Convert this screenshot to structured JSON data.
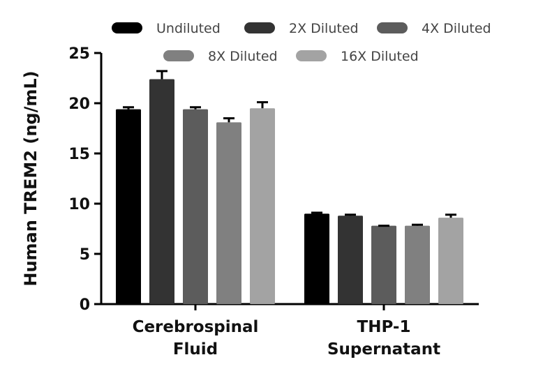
{
  "chart_data": {
    "type": "bar",
    "title": "",
    "xlabel": "",
    "ylabel": "Human TREM2 (ng/mL)",
    "ylim": [
      0,
      25
    ],
    "yticks": [
      0,
      5,
      10,
      15,
      20,
      25
    ],
    "ytick_labels": [
      "0",
      "5",
      "10",
      "15",
      "20",
      "25"
    ],
    "categories": [
      {
        "line1": "Cerebrospinal",
        "line2": "Fluid"
      },
      {
        "line1": "THP-1",
        "line2": "Supernatant"
      }
    ],
    "series": [
      {
        "name": "Undiluted",
        "color": "#000000",
        "values": [
          19.4,
          9.0
        ],
        "errors": [
          0.2,
          0.1
        ]
      },
      {
        "name": "2X Diluted",
        "color": "#333333",
        "values": [
          22.4,
          8.8
        ],
        "errors": [
          0.8,
          0.1
        ]
      },
      {
        "name": "4X Diluted",
        "color": "#5c5c5c",
        "values": [
          19.4,
          7.8
        ],
        "errors": [
          0.2,
          0.0
        ]
      },
      {
        "name": "8X Diluted",
        "color": "#808080",
        "values": [
          18.1,
          7.8
        ],
        "errors": [
          0.4,
          0.1
        ]
      },
      {
        "name": "16X Diluted",
        "color": "#a3a3a3",
        "values": [
          19.5,
          8.6
        ],
        "errors": [
          0.6,
          0.3
        ]
      }
    ],
    "grid": false,
    "legend_position": "top"
  }
}
